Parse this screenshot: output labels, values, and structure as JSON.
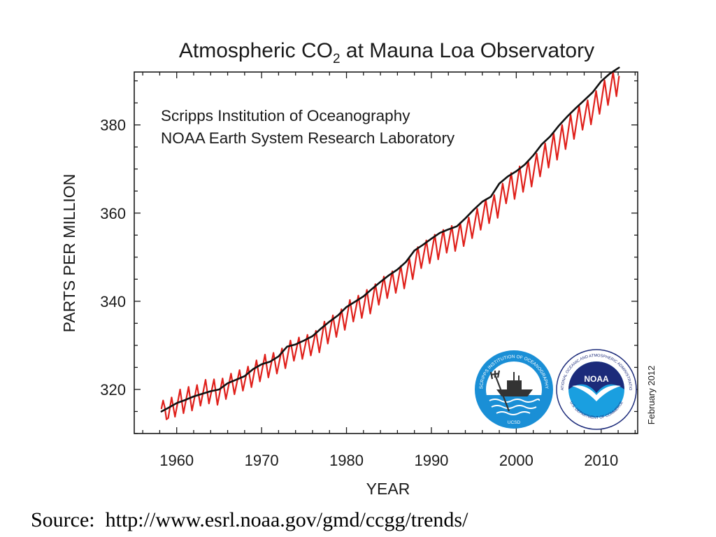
{
  "chart_data": {
    "type": "line",
    "title": {
      "prefix": "Atmospheric CO",
      "subscript": "2",
      "suffix": " at Mauna Loa Observatory"
    },
    "inset_lines": [
      "Scripps Institution of Oceanography",
      "NOAA Earth System Research Laboratory"
    ],
    "date_stamp": "February 2012",
    "xlabel": "YEAR",
    "ylabel": "PARTS PER MILLION",
    "xlim": [
      1955,
      2014.3
    ],
    "ylim": [
      310,
      392
    ],
    "x_ticks": [
      1960,
      1970,
      1980,
      1990,
      2000,
      2010
    ],
    "y_ticks": [
      320,
      340,
      360,
      380
    ],
    "series": [
      {
        "role": "monthly",
        "color": "#e0201b",
        "x": [
          1958.2,
          1958.4,
          1958.6,
          1958.8,
          1959.0,
          1959.4,
          1959.8,
          1960.4,
          1960.8,
          1961.4,
          1961.8,
          1962.4,
          1962.8,
          1963.4,
          1963.8,
          1964.4,
          1964.8,
          1965.4,
          1965.8,
          1966.4,
          1966.8,
          1967.4,
          1967.8,
          1968.4,
          1968.8,
          1969.4,
          1969.8,
          1970.4,
          1970.8,
          1971.4,
          1971.8,
          1972.4,
          1972.8,
          1973.4,
          1973.8,
          1974.4,
          1974.8,
          1975.4,
          1975.8,
          1976.4,
          1976.8,
          1977.4,
          1977.8,
          1978.4,
          1978.8,
          1979.4,
          1979.8,
          1980.4,
          1980.8,
          1981.4,
          1981.8,
          1982.4,
          1982.8,
          1983.4,
          1983.8,
          1984.4,
          1984.8,
          1985.4,
          1985.8,
          1986.4,
          1986.8,
          1987.4,
          1987.8,
          1988.4,
          1988.8,
          1989.4,
          1989.8,
          1990.4,
          1990.8,
          1991.4,
          1991.8,
          1992.4,
          1992.8,
          1993.4,
          1993.8,
          1994.4,
          1994.8,
          1995.4,
          1995.8,
          1996.4,
          1996.8,
          1997.4,
          1997.8,
          1998.4,
          1998.8,
          1999.4,
          1999.8,
          2000.4,
          2000.8,
          2001.4,
          2001.8,
          2002.4,
          2002.8,
          2003.4,
          2003.8,
          2004.4,
          2004.8,
          2005.4,
          2005.8,
          2006.4,
          2006.8,
          2007.4,
          2007.8,
          2008.4,
          2008.8,
          2009.4,
          2009.8,
          2010.4,
          2010.8,
          2011.4,
          2011.8,
          2012.1
        ],
        "y": [
          315.7,
          317.5,
          315.9,
          313.2,
          313.5,
          318.2,
          313.8,
          320.0,
          314.6,
          320.6,
          315.2,
          321.0,
          316.3,
          322.2,
          316.8,
          322.3,
          316.5,
          322.5,
          317.8,
          323.6,
          318.9,
          324.4,
          319.7,
          325.2,
          320.5,
          326.6,
          321.8,
          327.9,
          322.7,
          328.3,
          323.6,
          329.3,
          324.8,
          331.1,
          326.5,
          331.8,
          326.9,
          332.4,
          327.7,
          333.3,
          328.4,
          335.4,
          330.4,
          336.8,
          331.9,
          338.2,
          333.5,
          340.3,
          335.4,
          341.3,
          336.2,
          342.6,
          337.2,
          343.9,
          339.2,
          345.6,
          340.7,
          346.8,
          341.9,
          348.0,
          342.9,
          349.7,
          345.0,
          352.3,
          347.5,
          353.8,
          348.6,
          355.1,
          349.5,
          356.2,
          351.0,
          357.1,
          351.4,
          357.8,
          352.5,
          359.0,
          354.3,
          361.0,
          356.2,
          363.1,
          357.7,
          364.1,
          358.9,
          366.7,
          362.2,
          369.1,
          363.2,
          370.6,
          364.8,
          371.9,
          366.0,
          373.5,
          368.3,
          375.8,
          370.3,
          378.1,
          372.1,
          380.0,
          374.5,
          382.3,
          376.8,
          384.3,
          378.9,
          385.6,
          380.1,
          387.7,
          382.5,
          390.1,
          384.5,
          392.0,
          386.5,
          391.0
        ]
      },
      {
        "role": "annual_trend",
        "color": "#111111",
        "x": [
          1958.2,
          1959.0,
          1960.0,
          1961.0,
          1962.0,
          1963.0,
          1964.0,
          1965.0,
          1966.0,
          1967.0,
          1968.0,
          1969.0,
          1970.0,
          1971.0,
          1972.0,
          1973.0,
          1974.0,
          1975.0,
          1976.0,
          1977.0,
          1978.0,
          1979.0,
          1980.0,
          1981.0,
          1982.0,
          1983.0,
          1984.0,
          1985.0,
          1986.0,
          1987.0,
          1988.0,
          1989.0,
          1990.0,
          1991.0,
          1992.0,
          1993.0,
          1994.0,
          1995.0,
          1996.0,
          1997.0,
          1998.0,
          1999.0,
          2000.0,
          2001.0,
          2002.0,
          2003.0,
          2004.0,
          2005.0,
          2006.0,
          2007.0,
          2008.0,
          2009.0,
          2010.0,
          2011.0,
          2012.1
        ],
        "y": [
          315.0,
          315.8,
          316.9,
          317.6,
          318.4,
          319.0,
          319.6,
          320.0,
          321.4,
          322.2,
          323.0,
          324.6,
          325.7,
          326.3,
          327.5,
          329.7,
          330.2,
          331.1,
          332.1,
          333.8,
          335.4,
          336.8,
          338.7,
          339.9,
          341.1,
          342.8,
          344.4,
          345.9,
          347.2,
          348.9,
          351.5,
          352.8,
          354.2,
          355.5,
          356.3,
          357.0,
          358.8,
          360.8,
          362.6,
          363.7,
          366.7,
          368.3,
          369.5,
          371.0,
          373.1,
          375.6,
          377.4,
          379.8,
          381.9,
          383.8,
          385.6,
          387.4,
          389.9,
          391.6,
          393.0
        ]
      }
    ]
  },
  "source": {
    "text": "Source:  http://www.esrl.noaa.gov/gmd/ccgg/trends/"
  },
  "logos": {
    "scripps": {
      "ring_text": "SCRIPPS INSTITUTION OF OCEANOGRAPHY",
      "bottom_text": "UCSD",
      "colors": {
        "ring": "#1a8fd6",
        "sky": "#ffffff",
        "sea": "#1a8fd6"
      }
    },
    "noaa": {
      "center_text": "NOAA",
      "ring_text": "NATIONAL OCEANIC AND ATMOSPHERIC ADMINISTRATION",
      "bottom_text": "U.S. DEPARTMENT OF COMMERCE",
      "colors": {
        "navy": "#1c2b7a",
        "sea": "#1a9fe0"
      }
    }
  }
}
